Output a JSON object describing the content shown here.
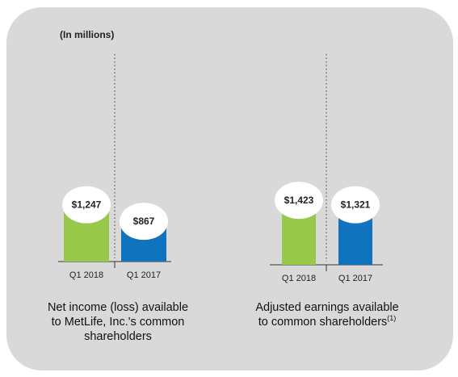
{
  "units_label": "(In millions)",
  "colors": {
    "current": "#99c94b",
    "prior": "#0f74bd",
    "panel": "#d9d9d9"
  },
  "chart_data": [
    {
      "type": "bar",
      "categories": [
        "Q1 2018",
        "Q1 2017"
      ],
      "values": [
        1247,
        867
      ],
      "value_labels": [
        "$1,247",
        "$867"
      ],
      "caption": [
        "Net income (loss) available",
        "to MetLife, Inc.'s common",
        "shareholders"
      ],
      "ylim": [
        0,
        1600
      ]
    },
    {
      "type": "bar",
      "categories": [
        "Q1 2018",
        "Q1 2017"
      ],
      "values": [
        1423,
        1321
      ],
      "value_labels": [
        "$1,423",
        "$1,321"
      ],
      "caption": [
        "Adjusted earnings available",
        "to common shareholders"
      ],
      "footnote": "(1)",
      "ylim": [
        0,
        1600
      ]
    }
  ]
}
